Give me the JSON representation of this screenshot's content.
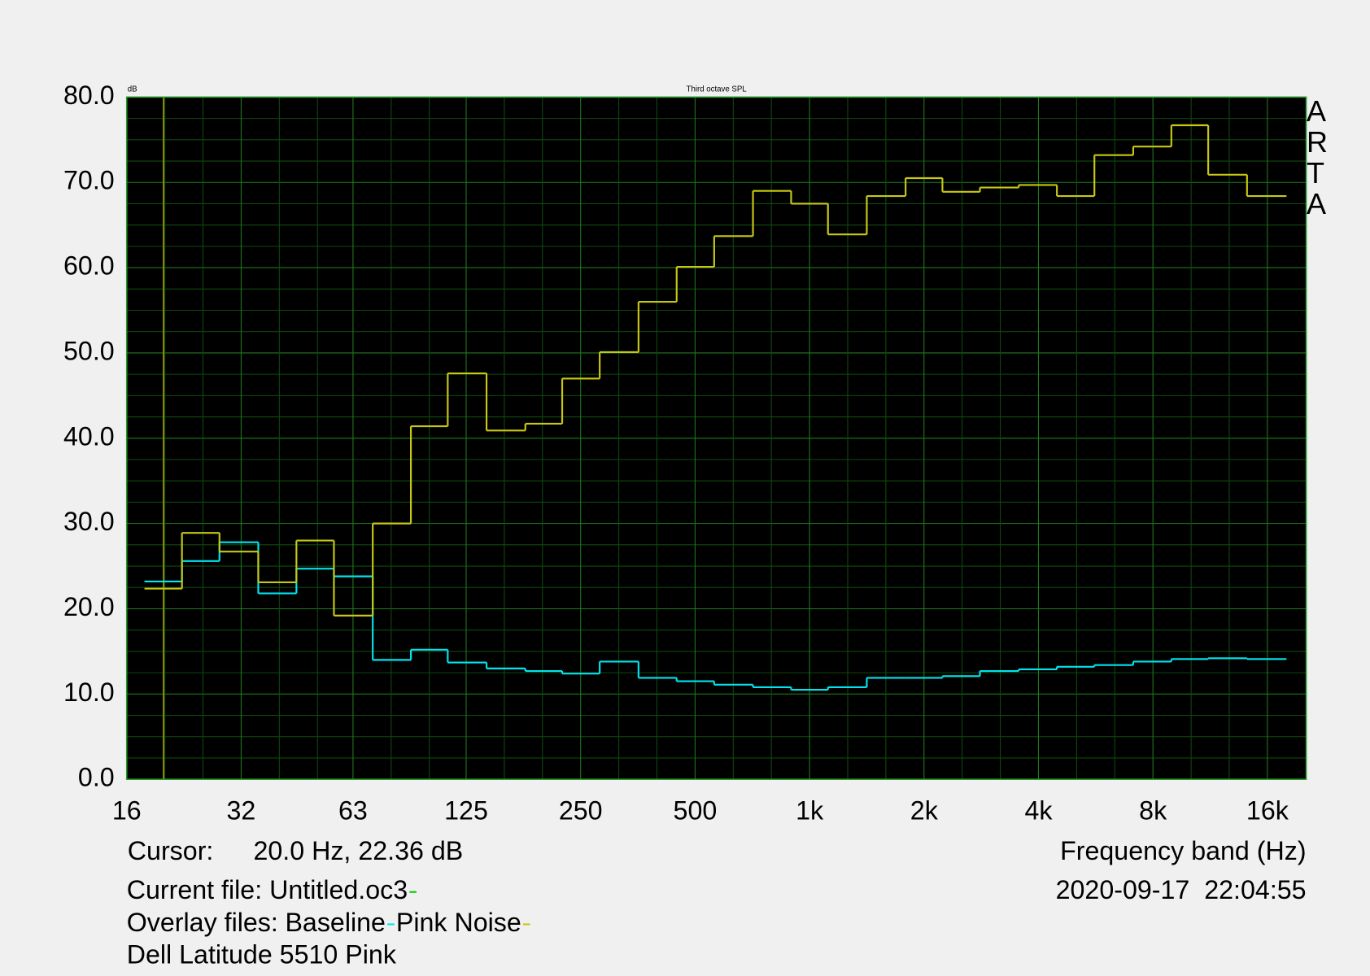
{
  "chart_data": {
    "type": "step",
    "title": "Third octave SPL",
    "y_unit_label": "dB",
    "x_label": "Frequency band (Hz)",
    "log_x": true,
    "grid": true,
    "background": "#000000",
    "grid_color": "#0f4a0f",
    "major_grid_color": "#1f7a1f",
    "xlim": [
      16,
      20240
    ],
    "xticks": [
      16,
      32,
      63,
      125,
      250,
      500,
      {
        "value": 1000,
        "label": "1k"
      },
      {
        "value": 2000,
        "label": "2k"
      },
      {
        "value": 4000,
        "label": "4k"
      },
      {
        "value": 8000,
        "label": "8k"
      },
      {
        "value": 16000,
        "label": "16k"
      }
    ],
    "ylim": [
      0,
      80
    ],
    "yticks": [
      {
        "value": 0,
        "label": "0.0"
      },
      {
        "value": 10,
        "label": "10.0"
      },
      {
        "value": 20,
        "label": "20.0"
      },
      {
        "value": 30,
        "label": "30.0"
      },
      {
        "value": 40,
        "label": "40.0"
      },
      {
        "value": 50,
        "label": "50.0"
      },
      {
        "value": 60,
        "label": "60.0"
      },
      {
        "value": 70,
        "label": "70.0"
      },
      {
        "value": 80,
        "label": "80.0"
      }
    ],
    "x": [
      20,
      25,
      31.5,
      40,
      50,
      63,
      80,
      100,
      125,
      160,
      200,
      250,
      315,
      400,
      500,
      630,
      800,
      1000,
      1250,
      1600,
      2000,
      2500,
      3150,
      4000,
      5000,
      6300,
      8000,
      10000,
      12500,
      16000
    ],
    "series": [
      {
        "name": "Baseline",
        "color": "#00e5ee",
        "values": [
          23.2,
          25.6,
          27.8,
          21.8,
          24.7,
          23.8,
          14.0,
          15.2,
          13.7,
          13.0,
          12.7,
          12.4,
          13.8,
          11.9,
          11.5,
          11.1,
          10.8,
          10.5,
          10.8,
          11.9,
          11.9,
          12.1,
          12.7,
          12.9,
          13.2,
          13.4,
          13.8,
          14.1,
          14.2,
          14.1
        ]
      },
      {
        "name": "Pink Noise",
        "color": "#c8c814",
        "values": [
          22.36,
          28.9,
          26.7,
          23.1,
          28.0,
          19.2,
          30.0,
          41.4,
          47.6,
          40.9,
          41.7,
          47.0,
          50.1,
          56.0,
          60.1,
          63.7,
          69.0,
          67.5,
          63.9,
          68.4,
          70.5,
          68.9,
          69.4,
          69.7,
          68.4,
          73.2,
          74.2,
          76.7,
          70.9,
          68.4
        ]
      }
    ],
    "cursor": {
      "label": "Cursor:",
      "text": "20.0 Hz, 22.36 dB",
      "x": 20,
      "color": "#a8a800"
    },
    "current_file": {
      "label": "Current file: Untitled.oc3",
      "color": "#00d000"
    },
    "overlay_label": "Overlay files:",
    "timestamp": "2020-09-17  22:04:55",
    "note": "Dell Latitude 5510 Pink",
    "brand": "ARTA"
  }
}
